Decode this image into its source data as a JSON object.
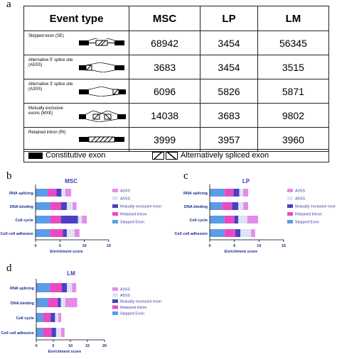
{
  "panel_labels": {
    "a": "a",
    "b": "b",
    "c": "c",
    "d": "d"
  },
  "table": {
    "headers": [
      "Event type",
      "MSC",
      "LP",
      "LM"
    ],
    "rows": [
      {
        "event": "Skipped exon (SE)",
        "values": [
          "68942",
          "3454",
          "56345"
        ]
      },
      {
        "event": "Alternative 5' splice site (A5SS)",
        "values": [
          "3683",
          "3454",
          "3515"
        ]
      },
      {
        "event": "Alternative 3' splice site (A3SS)",
        "values": [
          "6096",
          "5826",
          "5871"
        ]
      },
      {
        "event": "Mutually exclusive exons (MXE)",
        "values": [
          "14038",
          "3683",
          "9802"
        ]
      },
      {
        "event": "Retained intron (RI)",
        "values": [
          "3999",
          "3957",
          "3960"
        ]
      }
    ],
    "legend": {
      "constitutive": "Constitutive exon",
      "alternative": "Alternatively spliced exon"
    }
  },
  "colors": {
    "A3SS": "#e58be8",
    "A5SS": "#dbe3f4",
    "Mutually exclusive exon": "#4b3fc4",
    "Retained Intron": "#e94ac0",
    "Skipped Exon": "#5b9be8"
  },
  "chart_data": [
    {
      "type": "bar",
      "orientation": "horizontal",
      "stacked": true,
      "title": "MSC",
      "categories": [
        "RNA splicing",
        "DNA binding",
        "Cell cycle",
        "Cell cell adhesion"
      ],
      "xlabel": "Enrichment score",
      "xlim": [
        0,
        15
      ],
      "xticks": [
        "0",
        "5",
        "10",
        "15"
      ],
      "series": [
        {
          "name": "Skipped Exon",
          "values": [
            2.5,
            3.0,
            3.0,
            3.0
          ]
        },
        {
          "name": "Retained Intron",
          "values": [
            1.8,
            2.2,
            2.2,
            2.6
          ]
        },
        {
          "name": "Mutually exclusive exon",
          "values": [
            1.0,
            1.2,
            3.5,
            0.8
          ]
        },
        {
          "name": "A5SS",
          "values": [
            0.8,
            1.2,
            0.8,
            1.6
          ]
        },
        {
          "name": "A3SS",
          "values": [
            1.2,
            0.8,
            1.0,
            1.0
          ]
        }
      ],
      "legend": [
        "A3SS",
        "A5SS",
        "Mutually exclusive exon",
        "Retained Intron",
        "Skipped Exon"
      ]
    },
    {
      "type": "bar",
      "orientation": "horizontal",
      "stacked": true,
      "title": "LP",
      "categories": [
        "RNA splicing",
        "DNA binding",
        "Cell cycle",
        "Cell cell adhesion"
      ],
      "xlabel": "Enrichment score",
      "xlim": [
        0,
        15
      ],
      "xticks": [
        "0",
        "5",
        "10",
        "15"
      ],
      "series": [
        {
          "name": "Skipped Exon",
          "values": [
            3.0,
            2.5,
            3.0,
            3.0
          ]
        },
        {
          "name": "Retained Intron",
          "values": [
            1.8,
            2.0,
            2.0,
            2.2
          ]
        },
        {
          "name": "Mutually exclusive exon",
          "values": [
            1.2,
            1.3,
            0.8,
            1.0
          ]
        },
        {
          "name": "A5SS",
          "values": [
            0.8,
            1.0,
            1.8,
            2.2
          ]
        },
        {
          "name": "A3SS",
          "values": [
            1.0,
            1.0,
            2.2,
            0.8
          ]
        }
      ],
      "legend": [
        "A3SS",
        "A5SS",
        "Mutually exclusive exon",
        "Retained Intron",
        "Skipped Exon"
      ]
    },
    {
      "type": "bar",
      "orientation": "horizontal",
      "stacked": true,
      "title": "LM",
      "categories": [
        "RNA splicing",
        "DNA binding",
        "Cell cycle",
        "Cell cell adhesion"
      ],
      "xlabel": "Enrichment score",
      "xlim": [
        0,
        20
      ],
      "xticks": [
        "0",
        "5",
        "10",
        "15",
        "20"
      ],
      "series": [
        {
          "name": "Skipped Exon",
          "values": [
            4.0,
            3.5,
            2.0,
            2.0
          ]
        },
        {
          "name": "Retained Intron",
          "values": [
            3.5,
            2.8,
            2.2,
            2.5
          ]
        },
        {
          "name": "Mutually exclusive exon",
          "values": [
            1.5,
            0.9,
            1.3,
            1.3
          ]
        },
        {
          "name": "A5SS",
          "values": [
            1.5,
            1.3,
            1.0,
            1.5
          ]
        },
        {
          "name": "A3SS",
          "values": [
            1.2,
            3.5,
            0.8,
            1.0
          ]
        }
      ],
      "legend": [
        "A3SS",
        "A5SS",
        "Mutually exclusive exon",
        "Retained Intron",
        "Skipped Exon"
      ]
    }
  ]
}
